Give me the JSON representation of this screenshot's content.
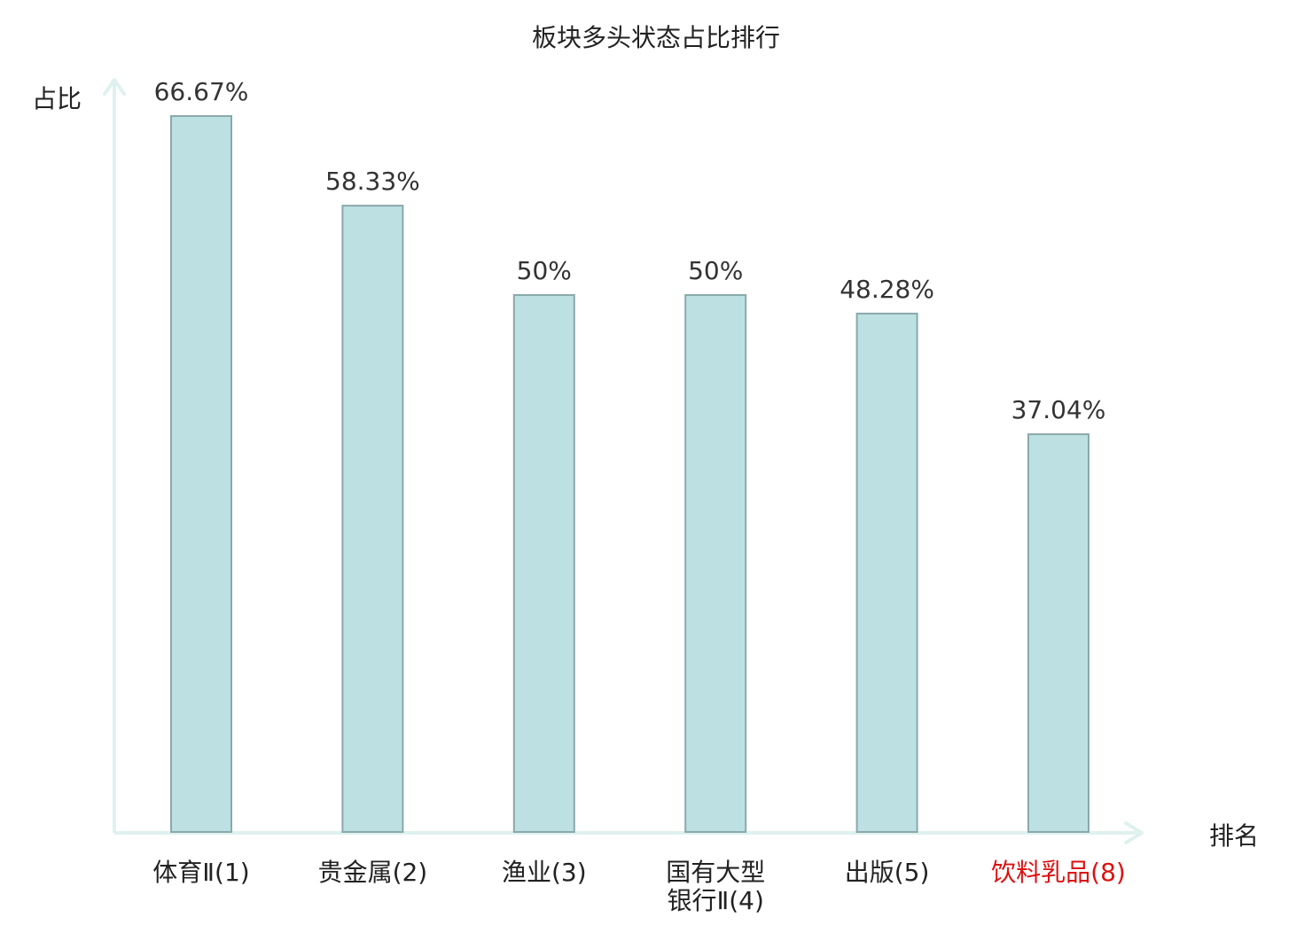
{
  "chart_data": {
    "type": "bar",
    "title": "板块多头状态占比排行",
    "ylabel": "占比",
    "xlabel": "排名",
    "categories": [
      [
        "体育Ⅱ(1)"
      ],
      [
        "贵金属(2)"
      ],
      [
        "渔业(3)"
      ],
      [
        "国有大型",
        "银行Ⅱ(4)"
      ],
      [
        "出版(5)"
      ],
      [
        "饮料乳品(8)"
      ]
    ],
    "values": [
      66.67,
      58.33,
      50,
      50,
      48.28,
      37.04
    ],
    "value_labels": [
      "66.67%",
      "58.33%",
      "50%",
      "50%",
      "48.28%",
      "37.04%"
    ],
    "highlight_index": 5,
    "ylim": [
      0,
      70
    ],
    "grid": false,
    "colors": {
      "bar_fill": "#bde0e2",
      "bar_stroke": "#8aa9ab",
      "axis": "#dff1ef",
      "text": "#333333",
      "title": "#222222",
      "highlight": "#dd1111"
    }
  }
}
